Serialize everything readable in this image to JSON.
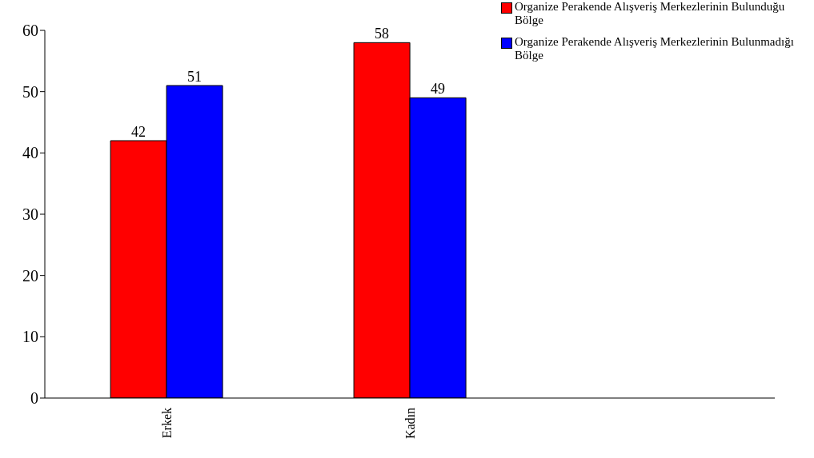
{
  "chart_data": {
    "type": "bar",
    "categories": [
      "Erkek",
      "Kadın",
      null
    ],
    "series": [
      {
        "name": "Organize Perakende Alışveriş Merkezlerinin Bulunduğu Bölge",
        "color": "#ff0000",
        "values": [
          42,
          58,
          null
        ]
      },
      {
        "name": "Organize Perakende Alışveriş Merkezlerinin Bulunmadığı Bölge",
        "color": "#0000ff",
        "values": [
          51,
          49,
          null
        ]
      }
    ],
    "ylim": [
      0,
      60
    ],
    "yticks": [
      0,
      10,
      20,
      30,
      40,
      50,
      60
    ],
    "data_labels": true,
    "legend": "top right",
    "grid": false
  }
}
